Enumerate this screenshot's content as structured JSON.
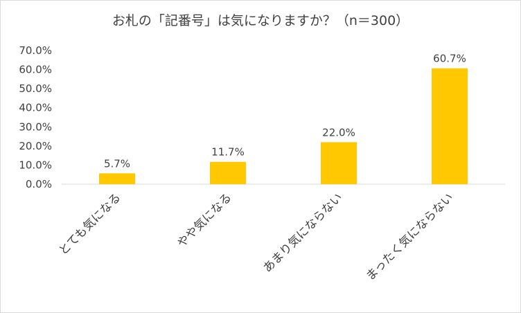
{
  "chart_data": {
    "type": "bar",
    "title": "お札の「記番号」は気になりますか？（n＝300）",
    "categories": [
      "とても気になる",
      "やや気になる",
      "あまり気にならない",
      "まったく気にならない"
    ],
    "values": [
      5.7,
      11.7,
      22.0,
      60.7
    ],
    "value_labels": [
      "5.7%",
      "11.7%",
      "22.0%",
      "60.7%"
    ],
    "y_ticks": [
      "0.0%",
      "10.0%",
      "20.0%",
      "30.0%",
      "40.0%",
      "50.0%",
      "60.0%",
      "70.0%"
    ],
    "ylim": [
      0,
      70
    ],
    "grid": false,
    "legend": "none",
    "bar_color": "#FFC800"
  }
}
